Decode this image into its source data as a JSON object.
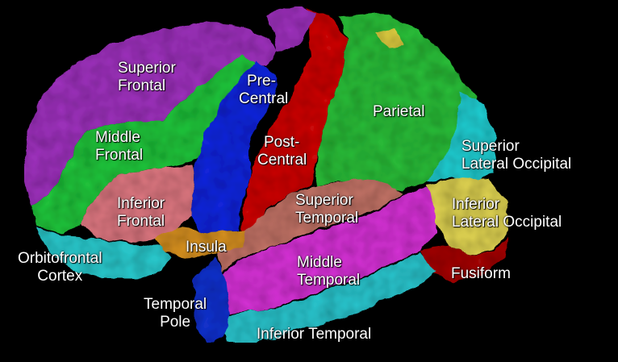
{
  "colors": {
    "background": "#000000",
    "superior_frontal": "#9a30b8",
    "middle_frontal": "#22c03a",
    "inferior_frontal": "#d8747e",
    "precentral": "#1428d8",
    "postcentral": "#c80c0c",
    "parietal": "#2ab838",
    "superior_lateral_occipital": "#24c8cc",
    "inferior_lateral_occipital": "#d8cc50",
    "fusiform": "#a01010",
    "superior_temporal": "#bc7064",
    "middle_temporal": "#d030d0",
    "inferior_temporal": "#2cc0c8",
    "insula": "#d08c20",
    "orbitofrontal": "#2cc4c8",
    "temporal_pole": "#1830c8",
    "yellow_patch": "#d8c840"
  },
  "labels": {
    "superior_frontal": [
      "Superior",
      "Frontal"
    ],
    "middle_frontal": [
      "Middle",
      "Frontal"
    ],
    "inferior_frontal": [
      "Inferior",
      "Frontal"
    ],
    "precentral": [
      "Pre-",
      "Central"
    ],
    "postcentral": [
      "Post-",
      "Central"
    ],
    "parietal": "Parietal",
    "superior_lateral_occipital": [
      "Superior",
      "Lateral Occipital"
    ],
    "inferior_lateral_occipital": [
      "Inferior",
      "Lateral Occipital"
    ],
    "superior_temporal": [
      "Superior",
      "Temporal"
    ],
    "insula": "Insula",
    "orbitofrontal": [
      "Orbitofrontal",
      "Cortex"
    ],
    "middle_temporal": [
      "Middle",
      "Temporal"
    ],
    "fusiform": "Fusiform",
    "temporal_pole": [
      "Temporal",
      "Pole"
    ],
    "inferior_temporal": "Inferior Temporal"
  }
}
